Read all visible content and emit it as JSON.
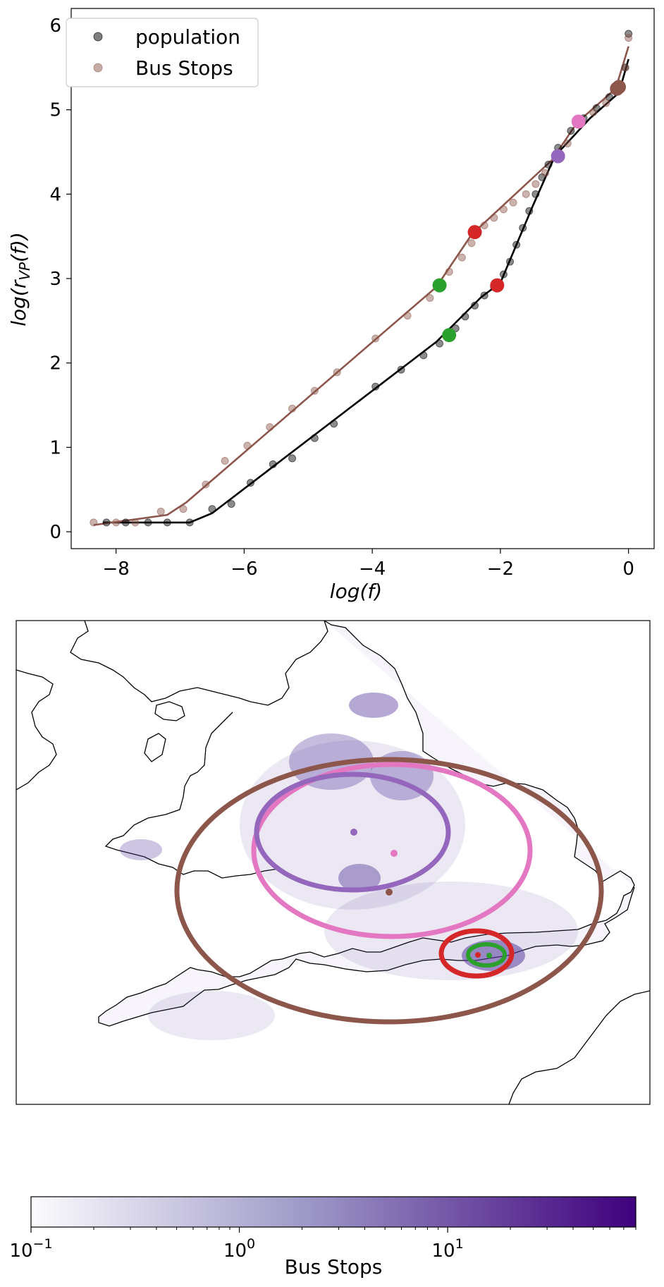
{
  "chart_data": [
    {
      "type": "scatter",
      "xlabel_base": "log(f)",
      "ylabel_base": "log(r",
      "ylabel_sub": "VP",
      "ylabel_tail": "(f))",
      "xlim": [
        -8.7,
        0.4
      ],
      "ylim": [
        -0.2,
        6.2
      ],
      "xticks": [
        -8,
        -6,
        -4,
        -2,
        0
      ],
      "yticks": [
        0,
        1,
        2,
        3,
        4,
        5,
        6
      ],
      "legend_position": "upper-left",
      "series": [
        {
          "name": "population",
          "color": "#000000",
          "points": [
            [
              -8.15,
              0.11
            ],
            [
              -7.85,
              0.11
            ],
            [
              -7.5,
              0.11
            ],
            [
              -7.2,
              0.11
            ],
            [
              -6.85,
              0.11
            ],
            [
              -6.5,
              0.27
            ],
            [
              -6.2,
              0.33
            ],
            [
              -5.9,
              0.58
            ],
            [
              -5.55,
              0.8
            ],
            [
              -5.25,
              0.87
            ],
            [
              -4.9,
              1.11
            ],
            [
              -4.6,
              1.28
            ],
            [
              -3.95,
              1.72
            ],
            [
              -3.55,
              1.92
            ],
            [
              -3.2,
              2.09
            ],
            [
              -2.95,
              2.23
            ],
            [
              -2.7,
              2.41
            ],
            [
              -2.55,
              2.55
            ],
            [
              -2.4,
              2.68
            ],
            [
              -2.25,
              2.8
            ],
            [
              -2.1,
              2.9
            ],
            [
              -1.95,
              3.05
            ],
            [
              -1.85,
              3.2
            ],
            [
              -1.75,
              3.4
            ],
            [
              -1.65,
              3.6
            ],
            [
              -1.55,
              3.8
            ],
            [
              -1.45,
              4.0
            ],
            [
              -1.35,
              4.2
            ],
            [
              -1.25,
              4.35
            ],
            [
              -1.1,
              4.55
            ],
            [
              -0.9,
              4.75
            ],
            [
              -0.7,
              4.9
            ],
            [
              -0.5,
              5.02
            ],
            [
              -0.3,
              5.15
            ],
            [
              -0.15,
              5.3
            ],
            [
              -0.05,
              5.5
            ],
            [
              0.0,
              5.9
            ]
          ],
          "fit": [
            [
              -8.2,
              0.11
            ],
            [
              -6.85,
              0.11
            ],
            [
              -6.5,
              0.22
            ],
            [
              -3.0,
              2.25
            ],
            [
              -2.3,
              2.78
            ],
            [
              -2.0,
              2.95
            ],
            [
              -1.5,
              3.85
            ],
            [
              -1.15,
              4.45
            ],
            [
              -0.6,
              4.9
            ],
            [
              -0.15,
              5.2
            ],
            [
              0.0,
              5.6
            ]
          ],
          "markers": [
            {
              "x": -2.8,
              "y": 2.33,
              "color": "#2ca02c"
            },
            {
              "x": -2.05,
              "y": 2.92,
              "color": "#d62728"
            },
            {
              "x": -1.1,
              "y": 4.45,
              "color": "#9467bd"
            },
            {
              "x": -0.18,
              "y": 5.25,
              "color": "#8c564b"
            }
          ]
        },
        {
          "name": "Bus Stops",
          "color": "#8c564b",
          "points": [
            [
              -8.35,
              0.11
            ],
            [
              -8.0,
              0.11
            ],
            [
              -7.7,
              0.11
            ],
            [
              -7.3,
              0.24
            ],
            [
              -6.95,
              0.27
            ],
            [
              -6.6,
              0.56
            ],
            [
              -6.3,
              0.84
            ],
            [
              -5.95,
              1.02
            ],
            [
              -5.6,
              1.24
            ],
            [
              -5.25,
              1.46
            ],
            [
              -4.9,
              1.67
            ],
            [
              -4.55,
              1.89
            ],
            [
              -3.95,
              2.29
            ],
            [
              -3.45,
              2.56
            ],
            [
              -3.1,
              2.77
            ],
            [
              -2.8,
              3.08
            ],
            [
              -2.6,
              3.25
            ],
            [
              -2.45,
              3.42
            ],
            [
              -2.25,
              3.63
            ],
            [
              -2.1,
              3.72
            ],
            [
              -1.95,
              3.82
            ],
            [
              -1.8,
              3.9
            ],
            [
              -1.6,
              4.0
            ],
            [
              -1.45,
              4.12
            ],
            [
              -1.3,
              4.25
            ],
            [
              -1.1,
              4.45
            ],
            [
              -0.95,
              4.6
            ],
            [
              -0.75,
              4.85
            ],
            [
              -0.55,
              4.97
            ],
            [
              -0.35,
              5.08
            ],
            [
              -0.15,
              5.25
            ],
            [
              -0.05,
              5.5
            ],
            [
              0.0,
              5.85
            ]
          ],
          "fit": [
            [
              -8.35,
              0.08
            ],
            [
              -7.2,
              0.2
            ],
            [
              -6.9,
              0.35
            ],
            [
              -3.0,
              2.9
            ],
            [
              -2.45,
              3.52
            ],
            [
              -1.2,
              4.4
            ],
            [
              -0.8,
              4.85
            ],
            [
              -0.2,
              5.25
            ],
            [
              0.0,
              5.75
            ]
          ],
          "markers": [
            {
              "x": -2.95,
              "y": 2.92,
              "color": "#2ca02c"
            },
            {
              "x": -2.4,
              "y": 3.55,
              "color": "#d62728"
            },
            {
              "x": -0.78,
              "y": 4.86,
              "color": "#e377c2"
            },
            {
              "x": -0.15,
              "y": 5.27,
              "color": "#8c564b"
            }
          ]
        }
      ]
    },
    {
      "type": "heatmap",
      "colorbar_label": "Bus Stops",
      "colorbar_scale": "log",
      "colorbar_range": [
        0.1,
        80
      ],
      "colorbar_cmap_start": "#fcfbfd",
      "colorbar_cmap_mid": "#9e9ac8",
      "colorbar_cmap_end": "#3f007d",
      "colorbar_ticks": [
        {
          "base": "10",
          "exp": "−1",
          "value": 0.1
        },
        {
          "base": "10",
          "exp": "0",
          "value": 1
        },
        {
          "base": "10",
          "exp": "1",
          "value": 10
        }
      ],
      "circles": [
        {
          "color": "#8c564b"
        },
        {
          "color": "#e377c2"
        },
        {
          "color": "#9467bd"
        },
        {
          "color": "#d62728"
        },
        {
          "color": "#2ca02c"
        }
      ]
    }
  ]
}
